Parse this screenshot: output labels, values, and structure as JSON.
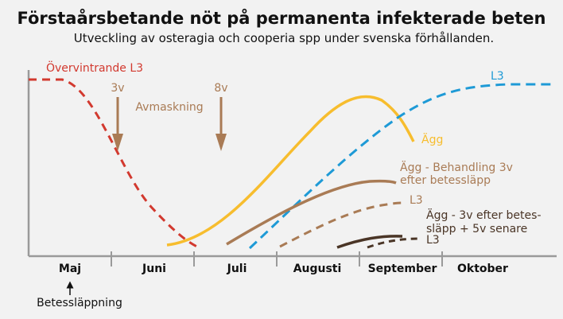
{
  "title": "Förstaårsbetande nöt på permanenta infekterade beten",
  "subtitle": "Utveckling av osteragia och cooperia spp under svenska förhållanden.",
  "colors": {
    "red": "#d2392f",
    "yellow": "#f7bd2e",
    "blue": "#1e9ad6",
    "brown": "#a97b55",
    "dark": "#4a3526",
    "axis": "#9a9a9a",
    "text": "#111111"
  },
  "annotations": {
    "overwintering": "Övervintrande L3",
    "l3_top": "L3",
    "week3": "3v",
    "week8": "8v",
    "deworming": "Avmaskning",
    "egg": "Ägg",
    "egg_treat_line1": "Ägg - Behandling 3v",
    "egg_treat_line2": "efter betessläpp",
    "l3_mid": "L3",
    "egg_treat2_line1": "Ägg - 3v efter betes-",
    "egg_treat2_line2": "släpp + 5v senare",
    "l3_low": "L3"
  },
  "months": [
    "Maj",
    "Juni",
    "Juli",
    "Augusti",
    "September",
    "Oktober"
  ],
  "grazing_start": "Betessläppning"
}
